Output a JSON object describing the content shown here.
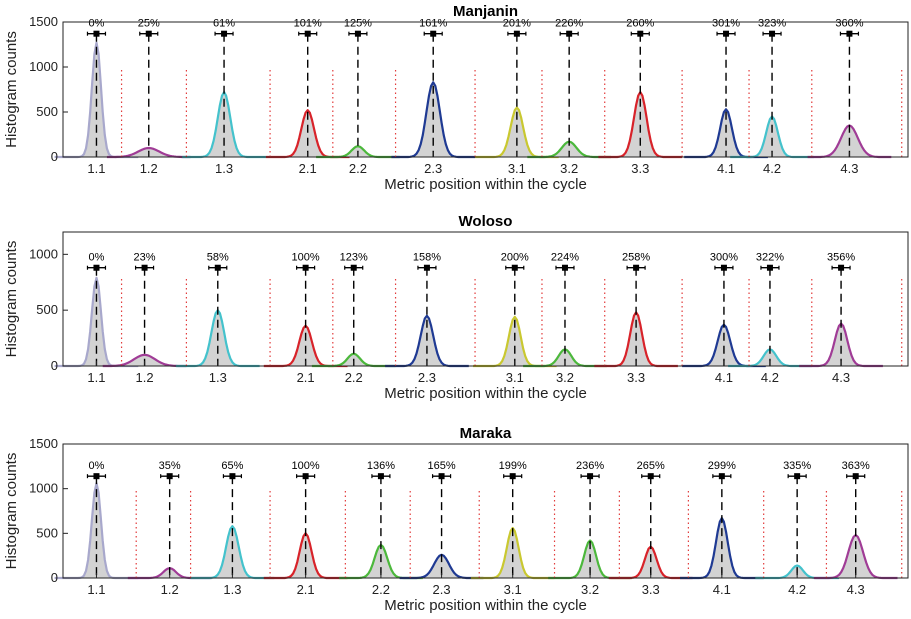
{
  "chart_data": [
    {
      "type": "area",
      "title": "Manjanin",
      "xlabel": "Metric position within the cycle",
      "ylabel": "Histogram counts",
      "ylim": [
        0,
        1500
      ],
      "yticks": [
        0,
        500,
        1000,
        1500
      ],
      "categories": [
        "1.1",
        "1.2",
        "1.3",
        "2.1",
        "2.2",
        "2.3",
        "3.1",
        "3.2",
        "3.3",
        "4.1",
        "4.2",
        "4.3"
      ],
      "category_positions": [
        0,
        25,
        61,
        101,
        125,
        161,
        201,
        226,
        260,
        301,
        323,
        360
      ],
      "mean_labels": [
        "0%",
        "25%",
        "61%",
        "101%",
        "125%",
        "161%",
        "201%",
        "226%",
        "260%",
        "301%",
        "323%",
        "360%"
      ],
      "means": [
        0,
        25,
        61,
        101,
        125,
        161,
        201,
        226,
        260,
        301,
        323,
        360
      ],
      "boundaries": [
        12,
        43,
        83,
        113,
        143,
        181,
        213,
        243,
        280,
        312,
        342,
        385
      ],
      "errorbar_y": 1370,
      "series": [
        {
          "name": "1.1",
          "color": "#a8a8cc",
          "peak": 1270,
          "spread": 2.2
        },
        {
          "name": "1.2",
          "color": "#a03c96",
          "peak": 100,
          "spread": 5
        },
        {
          "name": "1.3",
          "color": "#44c2cc",
          "peak": 720,
          "spread": 3
        },
        {
          "name": "2.1",
          "color": "#d8232a",
          "peak": 520,
          "spread": 3
        },
        {
          "name": "2.2",
          "color": "#4cb83c",
          "peak": 120,
          "spread": 3
        },
        {
          "name": "2.3",
          "color": "#1f3a93",
          "peak": 830,
          "spread": 3.2
        },
        {
          "name": "3.1",
          "color": "#c9c830",
          "peak": 550,
          "spread": 3
        },
        {
          "name": "3.2",
          "color": "#4cb83c",
          "peak": 170,
          "spread": 3.5
        },
        {
          "name": "3.3",
          "color": "#d8232a",
          "peak": 720,
          "spread": 3
        },
        {
          "name": "4.1",
          "color": "#1f3a93",
          "peak": 530,
          "spread": 2.8
        },
        {
          "name": "4.2",
          "color": "#44c2cc",
          "peak": 450,
          "spread": 2.8
        },
        {
          "name": "4.3",
          "color": "#a03c96",
          "peak": 350,
          "spread": 4
        }
      ]
    },
    {
      "type": "area",
      "title": "Woloso",
      "xlabel": "Metric position within the cycle",
      "ylabel": "Histogram counts",
      "ylim": [
        0,
        1200
      ],
      "yticks": [
        0,
        500,
        1000
      ],
      "categories": [
        "1.1",
        "1.2",
        "1.3",
        "2.1",
        "2.2",
        "2.3",
        "3.1",
        "3.2",
        "3.3",
        "4.1",
        "4.2",
        "4.3"
      ],
      "category_positions": [
        0,
        23,
        58,
        100,
        123,
        158,
        200,
        224,
        258,
        300,
        322,
        356
      ],
      "mean_labels": [
        "0%",
        "23%",
        "58%",
        "100%",
        "123%",
        "158%",
        "200%",
        "224%",
        "258%",
        "300%",
        "322%",
        "356%"
      ],
      "means": [
        0,
        23,
        58,
        100,
        123,
        158,
        200,
        224,
        258,
        300,
        322,
        356
      ],
      "boundaries": [
        12,
        43,
        83,
        113,
        143,
        181,
        213,
        243,
        280,
        312,
        342,
        385
      ],
      "errorbar_y": 880,
      "series": [
        {
          "name": "1.1",
          "color": "#a8a8cc",
          "peak": 790,
          "spread": 2.2
        },
        {
          "name": "1.2",
          "color": "#a03c96",
          "peak": 100,
          "spread": 5
        },
        {
          "name": "1.3",
          "color": "#44c2cc",
          "peak": 500,
          "spread": 3
        },
        {
          "name": "2.1",
          "color": "#d8232a",
          "peak": 360,
          "spread": 3
        },
        {
          "name": "2.2",
          "color": "#4cb83c",
          "peak": 110,
          "spread": 3
        },
        {
          "name": "2.3",
          "color": "#1f3a93",
          "peak": 450,
          "spread": 3
        },
        {
          "name": "3.1",
          "color": "#c9c830",
          "peak": 440,
          "spread": 2.8
        },
        {
          "name": "3.2",
          "color": "#4cb83c",
          "peak": 150,
          "spread": 3
        },
        {
          "name": "3.3",
          "color": "#d8232a",
          "peak": 480,
          "spread": 2.8
        },
        {
          "name": "4.1",
          "color": "#1f3a93",
          "peak": 370,
          "spread": 3
        },
        {
          "name": "4.2",
          "color": "#44c2cc",
          "peak": 150,
          "spread": 3
        },
        {
          "name": "4.3",
          "color": "#a03c96",
          "peak": 380,
          "spread": 3
        }
      ]
    },
    {
      "type": "area",
      "title": "Maraka",
      "xlabel": "Metric position within the cycle",
      "ylabel": "Histogram counts",
      "ylim": [
        0,
        1500
      ],
      "yticks": [
        0,
        500,
        1000,
        1500
      ],
      "categories": [
        "1.1",
        "1.2",
        "1.3",
        "2.1",
        "2.2",
        "2.3",
        "3.1",
        "3.2",
        "3.3",
        "4.1",
        "4.2",
        "4.3"
      ],
      "category_positions": [
        0,
        35,
        65,
        100,
        136,
        165,
        199,
        236,
        265,
        299,
        335,
        363
      ],
      "mean_labels": [
        "0%",
        "35%",
        "65%",
        "100%",
        "136%",
        "165%",
        "199%",
        "236%",
        "265%",
        "299%",
        "335%",
        "363%"
      ],
      "means": [
        0,
        35,
        65,
        100,
        136,
        165,
        199,
        236,
        265,
        299,
        335,
        363
      ],
      "boundaries": [
        19,
        45,
        83,
        119,
        150,
        183,
        219,
        250,
        283,
        319,
        349,
        385
      ],
      "errorbar_y": 1140,
      "series": [
        {
          "name": "1.1",
          "color": "#a8a8cc",
          "peak": 1060,
          "spread": 2.2
        },
        {
          "name": "1.2",
          "color": "#a03c96",
          "peak": 110,
          "spread": 3
        },
        {
          "name": "1.3",
          "color": "#44c2cc",
          "peak": 580,
          "spread": 3
        },
        {
          "name": "2.1",
          "color": "#d8232a",
          "peak": 500,
          "spread": 2.8
        },
        {
          "name": "2.2",
          "color": "#4cb83c",
          "peak": 370,
          "spread": 3
        },
        {
          "name": "2.3",
          "color": "#1f3a93",
          "peak": 260,
          "spread": 3.5
        },
        {
          "name": "3.1",
          "color": "#c9c830",
          "peak": 560,
          "spread": 2.8
        },
        {
          "name": "3.2",
          "color": "#4cb83c",
          "peak": 420,
          "spread": 2.8
        },
        {
          "name": "3.3",
          "color": "#d8232a",
          "peak": 350,
          "spread": 2.8
        },
        {
          "name": "4.1",
          "color": "#1f3a93",
          "peak": 670,
          "spread": 2.8
        },
        {
          "name": "4.2",
          "color": "#44c2cc",
          "peak": 140,
          "spread": 2.8
        },
        {
          "name": "4.3",
          "color": "#a03c96",
          "peak": 480,
          "spread": 3.5
        }
      ]
    }
  ]
}
